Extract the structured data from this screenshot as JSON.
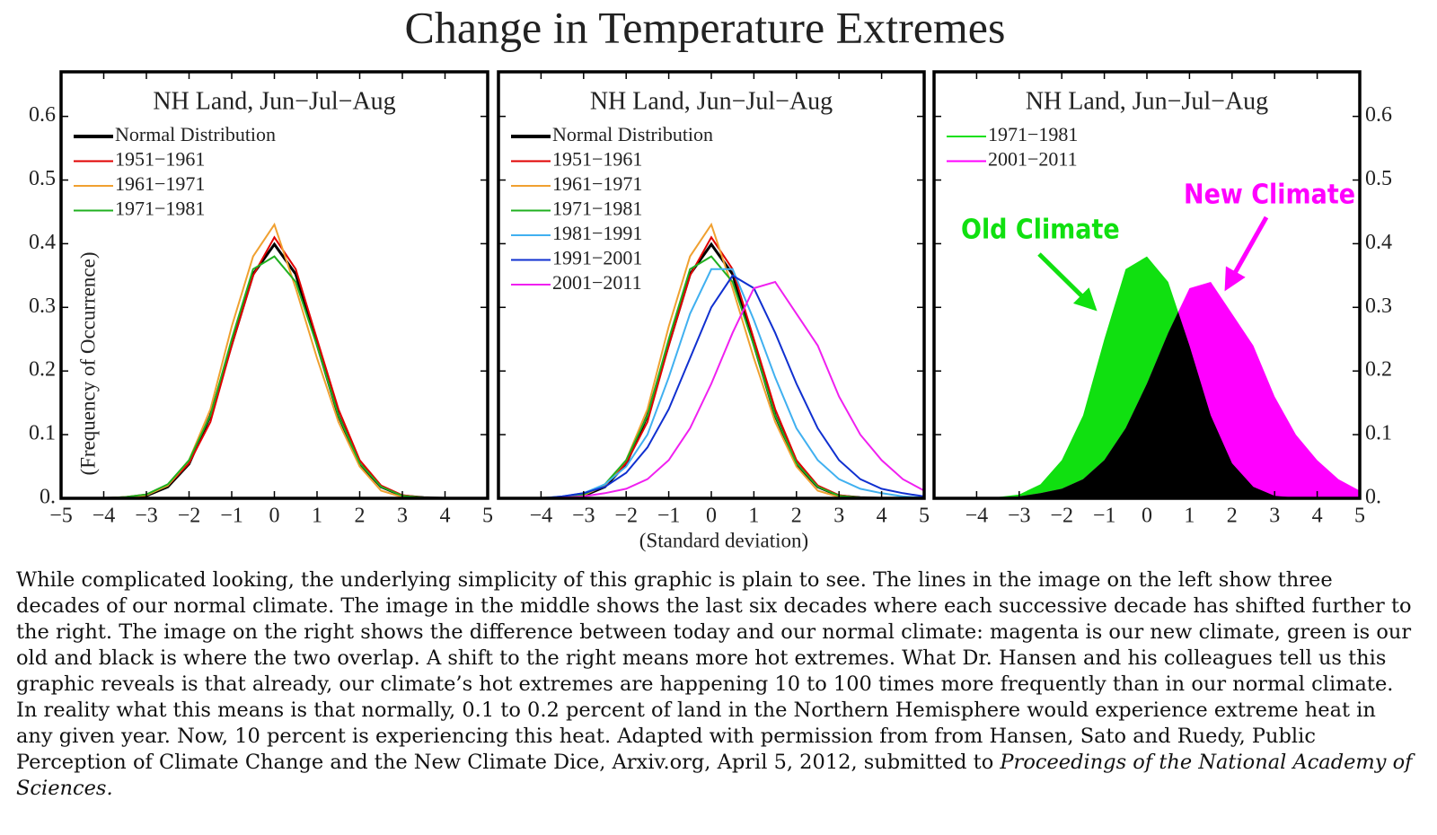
{
  "title": "Change in Temperature Extremes",
  "chart_data": [
    {
      "type": "line",
      "title": "NH Land, Jun−Jul−Aug",
      "ylabel": "(Frequency of Occurrence)",
      "xlim": [
        -5,
        5
      ],
      "ylim": [
        0,
        0.67
      ],
      "xticks": [
        {
          "value": -5,
          "label": "−5"
        },
        {
          "value": -4,
          "label": "−4"
        },
        {
          "value": -3,
          "label": "−3"
        },
        {
          "value": -2,
          "label": "−2"
        },
        {
          "value": -1,
          "label": "−1"
        },
        0,
        1,
        2,
        3,
        4,
        5
      ],
      "yticks": [
        {
          "value": 0,
          "label": "0."
        },
        0.1,
        0.2,
        0.3,
        0.4,
        0.5,
        0.6
      ],
      "ytick_side": "left",
      "legend": "upper left",
      "x": [
        -4,
        -3.5,
        -3,
        -2.5,
        -2,
        -1.5,
        -1,
        -0.5,
        0,
        0.5,
        1,
        1.5,
        2,
        2.5,
        3,
        3.5,
        4,
        4.5,
        5
      ],
      "series": [
        {
          "name": "Normal Distribution",
          "color": "#000000",
          "values": [
            0,
            0.001,
            0.004,
            0.018,
            0.054,
            0.13,
            0.242,
            0.352,
            0.399,
            0.352,
            0.242,
            0.13,
            0.054,
            0.018,
            0.004,
            0.001,
            0,
            0,
            0
          ]
        },
        {
          "name": "1951−1961",
          "color": "#e00000",
          "values": [
            0,
            0.002,
            0.006,
            0.02,
            0.055,
            0.12,
            0.24,
            0.35,
            0.41,
            0.36,
            0.25,
            0.14,
            0.06,
            0.02,
            0.005,
            0.001,
            0,
            0,
            0
          ]
        },
        {
          "name": "1961−1971",
          "color": "#f0a030",
          "values": [
            0,
            0.001,
            0.005,
            0.02,
            0.06,
            0.14,
            0.27,
            0.38,
            0.43,
            0.33,
            0.22,
            0.12,
            0.05,
            0.012,
            0.002,
            0,
            0,
            0,
            0
          ]
        },
        {
          "name": "1971−1981",
          "color": "#20b020",
          "values": [
            0,
            0.002,
            0.006,
            0.022,
            0.06,
            0.13,
            0.25,
            0.36,
            0.38,
            0.34,
            0.24,
            0.13,
            0.055,
            0.018,
            0.004,
            0.001,
            0,
            0,
            0
          ]
        }
      ]
    },
    {
      "type": "line",
      "title": "NH Land, Jun−Jul−Aug",
      "xlabel": "(Standard deviation)",
      "xlim": [
        -5,
        5
      ],
      "ylim": [
        0,
        0.67
      ],
      "xticks": [
        {
          "value": -4,
          "label": "−4"
        },
        {
          "value": -3,
          "label": "−3"
        },
        {
          "value": -2,
          "label": "−2"
        },
        {
          "value": -1,
          "label": "−1"
        },
        0,
        1,
        2,
        3,
        4,
        5
      ],
      "yticks": [
        0,
        0.1,
        0.2,
        0.3,
        0.4,
        0.5,
        0.6
      ],
      "ytick_side": "none",
      "legend": "upper left",
      "x": [
        -4,
        -3.5,
        -3,
        -2.5,
        -2,
        -1.5,
        -1,
        -0.5,
        0,
        0.5,
        1,
        1.5,
        2,
        2.5,
        3,
        3.5,
        4,
        4.5,
        5
      ],
      "series": [
        {
          "name": "Normal Distribution",
          "color": "#000000",
          "values": [
            0,
            0.001,
            0.004,
            0.018,
            0.054,
            0.13,
            0.242,
            0.352,
            0.399,
            0.352,
            0.242,
            0.13,
            0.054,
            0.018,
            0.004,
            0.001,
            0,
            0,
            0
          ]
        },
        {
          "name": "1951−1961",
          "color": "#e00000",
          "values": [
            0,
            0.002,
            0.006,
            0.02,
            0.055,
            0.12,
            0.24,
            0.35,
            0.41,
            0.36,
            0.25,
            0.14,
            0.06,
            0.02,
            0.005,
            0.001,
            0,
            0,
            0
          ]
        },
        {
          "name": "1961−1971",
          "color": "#f0a030",
          "values": [
            0,
            0.001,
            0.005,
            0.02,
            0.06,
            0.14,
            0.27,
            0.38,
            0.43,
            0.33,
            0.22,
            0.12,
            0.05,
            0.012,
            0.002,
            0,
            0,
            0,
            0
          ]
        },
        {
          "name": "1971−1981",
          "color": "#20b020",
          "values": [
            0,
            0.002,
            0.006,
            0.022,
            0.06,
            0.13,
            0.25,
            0.36,
            0.38,
            0.34,
            0.24,
            0.13,
            0.055,
            0.018,
            0.004,
            0.001,
            0,
            0,
            0
          ]
        },
        {
          "name": "1981−1991",
          "color": "#40b0f0",
          "values": [
            0,
            0.003,
            0.008,
            0.022,
            0.05,
            0.1,
            0.19,
            0.29,
            0.36,
            0.36,
            0.28,
            0.19,
            0.11,
            0.06,
            0.03,
            0.015,
            0.008,
            0.003,
            0.001
          ]
        },
        {
          "name": "1991−2001",
          "color": "#1030d0",
          "values": [
            0,
            0.003,
            0.008,
            0.018,
            0.04,
            0.08,
            0.14,
            0.22,
            0.3,
            0.35,
            0.33,
            0.26,
            0.18,
            0.11,
            0.06,
            0.03,
            0.015,
            0.008,
            0.003
          ]
        },
        {
          "name": "2001−2011",
          "color": "#f020f0",
          "values": [
            0,
            0.001,
            0.003,
            0.008,
            0.015,
            0.03,
            0.06,
            0.11,
            0.18,
            0.26,
            0.33,
            0.34,
            0.29,
            0.24,
            0.16,
            0.1,
            0.06,
            0.03,
            0.012
          ]
        }
      ]
    },
    {
      "type": "area",
      "title": "NH Land, Jun−Jul−Aug",
      "xlim": [
        -5,
        5
      ],
      "ylim": [
        0,
        0.67
      ],
      "xticks": [
        {
          "value": -4,
          "label": "−4"
        },
        {
          "value": -3,
          "label": "−3"
        },
        {
          "value": -2,
          "label": "−2"
        },
        {
          "value": -1,
          "label": "−1"
        },
        0,
        1,
        2,
        3,
        4,
        5
      ],
      "yticks": [
        {
          "value": 0,
          "label": "0."
        },
        0.1,
        0.2,
        0.3,
        0.4,
        0.5,
        0.6
      ],
      "ytick_side": "right",
      "legend": "upper left",
      "overlap_color": "#000000",
      "x": [
        -4,
        -3.5,
        -3,
        -2.5,
        -2,
        -1.5,
        -1,
        -0.5,
        0,
        0.5,
        1,
        1.5,
        2,
        2.5,
        3,
        3.5,
        4,
        4.5,
        5
      ],
      "series": [
        {
          "name": "1971−1981",
          "color": "#10e010",
          "values": [
            0,
            0.002,
            0.006,
            0.022,
            0.06,
            0.13,
            0.25,
            0.36,
            0.38,
            0.34,
            0.24,
            0.13,
            0.055,
            0.018,
            0.004,
            0.001,
            0,
            0,
            0
          ]
        },
        {
          "name": "2001−2011",
          "color": "#ff00ff",
          "values": [
            0,
            0.001,
            0.003,
            0.008,
            0.015,
            0.03,
            0.06,
            0.11,
            0.18,
            0.26,
            0.33,
            0.34,
            0.29,
            0.24,
            0.16,
            0.1,
            0.06,
            0.03,
            0.012
          ]
        }
      ],
      "annotations": [
        {
          "text": "Old Climate",
          "color": "#10e010"
        },
        {
          "text": "New Climate",
          "color": "#ff00ff"
        }
      ]
    }
  ],
  "caption": {
    "text": "While complicated looking, the underlying simplicity of this graphic is plain to see. The lines in the image on the left show three decades of our normal climate. The image in the middle shows the last six decades where each successive decade has shifted further to the right. The image on the right shows the difference between today and our normal climate: magenta is our new climate, green is our old and black is where the two overlap. A shift to the right means more hot extremes. What Dr. Hansen and his colleagues tell us this graphic reveals is that already, our climate’s hot extremes are happening 10 to 100 times more frequently than in our normal climate. In reality what this means is that normally, 0.1 to 0.2 percent of land in the Northern Hemisphere would experience extreme heat in any given year. Now, 10 percent is experiencing this heat. Adapted with permission from from Hansen, Sato and Ruedy, Public Perception of Climate Change and the New Climate Dice, Arxiv.org, April 5, 2012, submitted to",
    "source": "Proceedings of the National Academy of Sciences."
  }
}
